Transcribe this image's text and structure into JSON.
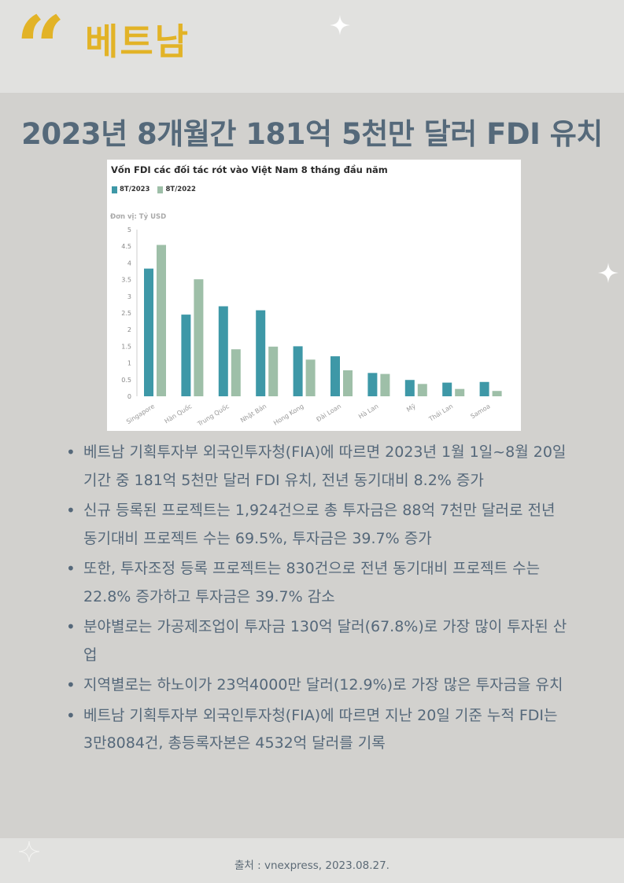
{
  "header": {
    "quote_mark": "“",
    "brand": "베트남"
  },
  "headline": "2023년 8개월간 181억 5천만 달러 FDI 유치",
  "chart_panel": {
    "title": "Vốn FDI các đối tác rót vào Việt Nam 8 tháng đầu năm",
    "unit": "Đơn vị: Tỷ USD"
  },
  "chart_data": {
    "type": "bar",
    "title": "Vốn FDI các đối tác rót vào Việt Nam 8 tháng đầu năm",
    "ylabel": "Đơn vị: Tỷ USD",
    "xlabel": "",
    "ylim": [
      0,
      5
    ],
    "yticks": [
      "0",
      "0.5",
      "1",
      "1.5",
      "2",
      "2.5",
      "3",
      "3.5",
      "4",
      "4.5",
      "5"
    ],
    "grid": false,
    "legend_position": "top-left",
    "categories": [
      "Singapore",
      "Hàn Quốc",
      "Trung Quốc",
      "Nhật Bản",
      "Hong Kong",
      "Đài Loan",
      "Hà Lan",
      "Mỹ",
      "Thái Lan",
      "Samoa"
    ],
    "series": [
      {
        "name": "8T/2023",
        "color": "#3e98a7",
        "values": [
          3.83,
          2.45,
          2.7,
          2.58,
          1.5,
          1.2,
          0.7,
          0.49,
          0.41,
          0.43
        ]
      },
      {
        "name": "8T/2022",
        "color": "#9ebfa8",
        "values": [
          4.54,
          3.51,
          1.41,
          1.49,
          1.1,
          0.78,
          0.67,
          0.37,
          0.22,
          0.16
        ]
      }
    ]
  },
  "bullets": [
    "베트남 기획투자부 외국인투자청(FIA)에 따르면 2023년 1월 1일~8월 20일 기간 중 181억 5천만 달러 FDI 유치, 전년 동기대비 8.2% 증가",
    "신규 등록된 프로젝트는 1,924건으로 총 투자금은 88억 7천만 달러로 전년 동기대비 프로젝트 수는 69.5%, 투자금은 39.7% 증가",
    "또한, 투자조정 등록 프로젝트는 830건으로 전년 동기대비 프로젝트 수는 22.8% 증가하고 투자금은 39.7% 감소",
    "분야별로는 가공제조업이 투자금 130억 달러(67.8%)로 가장 많이 투자된 산업",
    "지역별로는 하노이가 23억4000만 달러(12.9%)로 가장 많은 투자금을 유치",
    "베트남 기획투자부 외국인투자청(FIA)에 따르면 지난 20일 기준 누적 FDI는 3만8084건, 총등록자본은 4532억 달러를 기록"
  ],
  "bullet_glyph": "•",
  "source": "출처 : vnexpress, 2023.08.27.",
  "colors": {
    "accent": "#e2b327",
    "headline": "#55697a",
    "background": "#d2d1ce",
    "band": "#e1e1df"
  },
  "icons": [
    "sparkle-icon",
    "quote-icon"
  ]
}
